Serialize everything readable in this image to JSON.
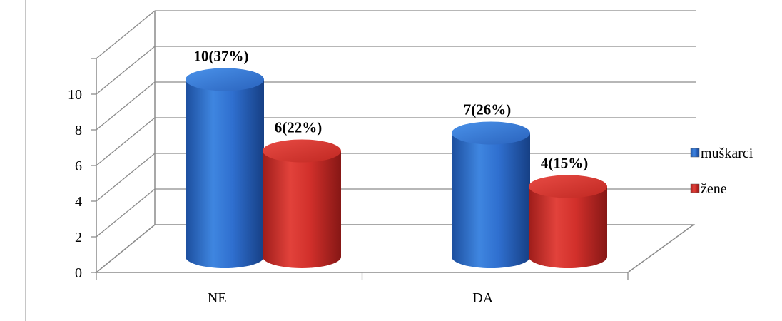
{
  "chart_data": {
    "type": "bar",
    "categories": [
      "NE",
      "DA"
    ],
    "series": [
      {
        "name": "muškarci",
        "values": [
          10,
          7
        ],
        "labels": [
          "10(37%)",
          "7(26%)"
        ],
        "color": "#2f6fcf"
      },
      {
        "name": "žene",
        "values": [
          6,
          4
        ],
        "labels": [
          "6(22%)",
          "4(15%)"
        ],
        "color": "#d2302b"
      }
    ],
    "y_ticks": [
      "0",
      "2",
      "4",
      "6",
      "8",
      "10"
    ],
    "ylim": [
      0,
      12
    ],
    "grid": true,
    "legend": "right",
    "style": "3d-cylinder"
  }
}
